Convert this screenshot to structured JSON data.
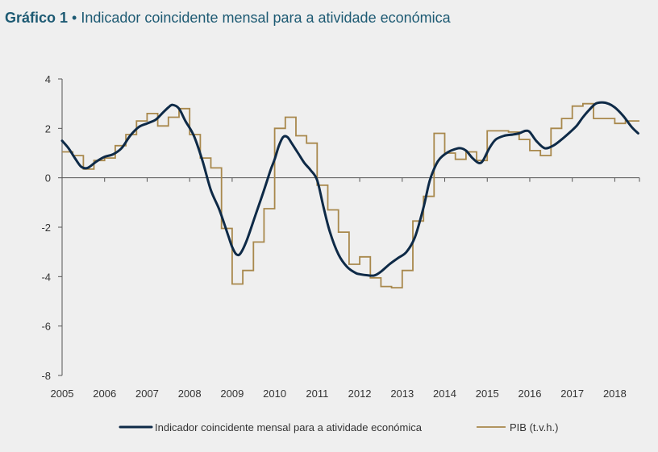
{
  "title": {
    "prefix": "Gráfico 1",
    "separator": " • ",
    "text": "Indicador coincidente mensal para a atividade económica"
  },
  "colors": {
    "indicator": "#0e2a47",
    "pib": "#a8884c",
    "axis": "#555555",
    "title": "#1d5a73"
  },
  "chart_data": {
    "type": "line",
    "title": "Indicador coincidente mensal para a atividade económica",
    "xlim": [
      2005,
      2018.58
    ],
    "ylim": [
      -8,
      4
    ],
    "x_ticks": [
      "2005",
      "2006",
      "2007",
      "2008",
      "2009",
      "2010",
      "2011",
      "2012",
      "2013",
      "2014",
      "2015",
      "2016",
      "2017",
      "2018"
    ],
    "y_ticks": [
      4,
      2,
      0,
      -2,
      -4,
      -6,
      -8
    ],
    "y_tick_labels": [
      "4",
      "2",
      "0",
      "-2",
      "-4",
      "-6",
      "-8"
    ],
    "grid": false,
    "legend_position": "bottom",
    "series": [
      {
        "name": "Indicador coincidente mensal para a atividade económica",
        "style": "smooth",
        "x": [
          2005.0,
          2005.15,
          2005.3,
          2005.45,
          2005.6,
          2005.8,
          2006.0,
          2006.2,
          2006.4,
          2006.6,
          2006.8,
          2007.0,
          2007.2,
          2007.35,
          2007.5,
          2007.6,
          2007.75,
          2007.9,
          2008.1,
          2008.3,
          2008.5,
          2008.7,
          2008.9,
          2009.0,
          2009.1,
          2009.2,
          2009.35,
          2009.55,
          2009.75,
          2009.9,
          2010.0,
          2010.1,
          2010.2,
          2010.3,
          2010.4,
          2010.55,
          2010.7,
          2010.85,
          2011.0,
          2011.15,
          2011.3,
          2011.5,
          2011.7,
          2011.9,
          2012.0,
          2012.2,
          2012.35,
          2012.5,
          2012.7,
          2012.9,
          2013.1,
          2013.3,
          2013.5,
          2013.65,
          2013.8,
          2013.9,
          2014.0,
          2014.15,
          2014.35,
          2014.5,
          2014.65,
          2014.8,
          2014.9,
          2015.05,
          2015.2,
          2015.4,
          2015.6,
          2015.75,
          2015.9,
          2016.0,
          2016.15,
          2016.35,
          2016.55,
          2016.75,
          2016.95,
          2017.1,
          2017.25,
          2017.4,
          2017.55,
          2017.7,
          2017.85,
          2018.0,
          2018.2,
          2018.4,
          2018.55
        ],
        "values": [
          1.5,
          1.2,
          0.8,
          0.45,
          0.4,
          0.65,
          0.85,
          0.95,
          1.2,
          1.7,
          2.05,
          2.2,
          2.35,
          2.6,
          2.85,
          2.95,
          2.8,
          2.3,
          1.7,
          0.7,
          -0.5,
          -1.3,
          -2.3,
          -2.8,
          -3.1,
          -3.05,
          -2.5,
          -1.5,
          -0.5,
          0.3,
          0.75,
          1.3,
          1.65,
          1.65,
          1.4,
          1.0,
          0.6,
          0.3,
          -0.1,
          -1.2,
          -2.2,
          -3.1,
          -3.6,
          -3.85,
          -3.9,
          -3.95,
          -3.95,
          -3.8,
          -3.5,
          -3.25,
          -3.0,
          -2.4,
          -1.2,
          -0.1,
          0.55,
          0.8,
          0.95,
          1.1,
          1.2,
          1.1,
          0.8,
          0.6,
          0.7,
          1.2,
          1.55,
          1.7,
          1.75,
          1.8,
          1.9,
          1.85,
          1.5,
          1.2,
          1.3,
          1.55,
          1.85,
          2.1,
          2.45,
          2.75,
          3.0,
          3.05,
          3.0,
          2.85,
          2.5,
          2.05,
          1.8
        ]
      },
      {
        "name": "PIB (t.v.h.)",
        "style": "step",
        "x": [
          2005.0,
          2005.25,
          2005.5,
          2005.75,
          2006.0,
          2006.25,
          2006.5,
          2006.75,
          2007.0,
          2007.25,
          2007.5,
          2007.75,
          2008.0,
          2008.25,
          2008.5,
          2008.75,
          2009.0,
          2009.25,
          2009.5,
          2009.75,
          2010.0,
          2010.25,
          2010.5,
          2010.75,
          2011.0,
          2011.25,
          2011.5,
          2011.75,
          2012.0,
          2012.25,
          2012.5,
          2012.75,
          2013.0,
          2013.25,
          2013.5,
          2013.75,
          2014.0,
          2014.25,
          2014.5,
          2014.75,
          2015.0,
          2015.25,
          2015.5,
          2015.75,
          2016.0,
          2016.25,
          2016.5,
          2016.75,
          2017.0,
          2017.25,
          2017.5,
          2017.75,
          2018.0,
          2018.25,
          2018.58
        ],
        "values": [
          1.05,
          0.9,
          0.35,
          0.7,
          0.8,
          1.3,
          1.75,
          2.3,
          2.6,
          2.1,
          2.45,
          2.8,
          1.75,
          0.8,
          0.4,
          -2.05,
          -4.3,
          -3.75,
          -2.6,
          -1.25,
          2.0,
          2.45,
          1.7,
          1.4,
          -0.3,
          -1.3,
          -2.2,
          -3.5,
          -3.2,
          -4.05,
          -4.4,
          -4.45,
          -3.75,
          -1.75,
          -0.75,
          1.8,
          1.0,
          0.75,
          1.05,
          0.7,
          1.9,
          1.9,
          1.85,
          1.55,
          1.1,
          0.9,
          2.0,
          2.4,
          2.9,
          3.0,
          2.4,
          2.4,
          2.2,
          2.3,
          2.3
        ]
      }
    ]
  }
}
